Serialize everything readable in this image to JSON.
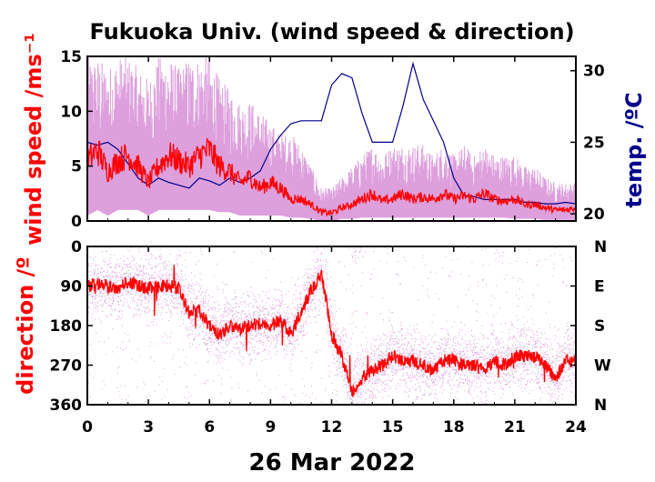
{
  "title": "Fukuoka Univ. (wind speed & direction)",
  "xlabel": "26 Mar 2022",
  "colors": {
    "speed": "#ff0000",
    "speed_range": "#dda0dd",
    "temp": "#00008b",
    "axis": "#000000"
  },
  "x_ticks": [
    "0",
    "3",
    "6",
    "9",
    "12",
    "15",
    "18",
    "21",
    "24"
  ],
  "chart_data": [
    {
      "type": "line",
      "name": "wind speed & temperature",
      "ylabel": "wind speed /ms⁻¹",
      "y2label": "temp. /ºC",
      "xlim": [
        0,
        24
      ],
      "ylim": [
        0,
        15
      ],
      "y2lim": [
        19.5,
        31
      ],
      "y_ticks": [
        "0",
        "5",
        "10",
        "15"
      ],
      "y2_ticks": [
        "20",
        "25",
        "30"
      ],
      "wind_speed": {
        "x": [
          0,
          0.5,
          1,
          1.5,
          2,
          2.5,
          3,
          3.5,
          4,
          4.5,
          5,
          5.5,
          6,
          6.5,
          7,
          7.5,
          8,
          8.5,
          9,
          9.5,
          10,
          10.5,
          11,
          11.5,
          12,
          12.5,
          13,
          13.5,
          14,
          14.5,
          15,
          15.5,
          16,
          16.5,
          17,
          17.5,
          18,
          18.5,
          19,
          19.5,
          20,
          20.5,
          21,
          21.5,
          22,
          22.5,
          23,
          23.5,
          24
        ],
        "y": [
          5.5,
          6.5,
          4.5,
          5.5,
          6.0,
          5.0,
          3.5,
          5.0,
          6.0,
          5.5,
          5.0,
          6.0,
          6.5,
          5.0,
          4.5,
          3.5,
          4.0,
          3.0,
          3.5,
          3.0,
          2.0,
          2.0,
          1.5,
          0.8,
          0.7,
          1.2,
          1.5,
          2.0,
          2.5,
          1.8,
          2.0,
          2.5,
          2.0,
          2.2,
          2.0,
          2.5,
          2.0,
          2.3,
          2.0,
          2.5,
          2.0,
          1.8,
          2.0,
          1.5,
          1.5,
          1.2,
          1.0,
          1.0,
          1.2
        ]
      },
      "wind_range": {
        "x": [
          0,
          0.5,
          1,
          1.5,
          2,
          2.5,
          3,
          3.5,
          4,
          4.5,
          5,
          5.5,
          6,
          6.5,
          7,
          7.5,
          8,
          8.5,
          9,
          9.5,
          10,
          10.5,
          11,
          11.5,
          12,
          12.5,
          13,
          13.5,
          14,
          14.5,
          15,
          15.5,
          16,
          16.5,
          17,
          17.5,
          18,
          18.5,
          19,
          19.5,
          20,
          20.5,
          21,
          21.5,
          22,
          22.5,
          23,
          23.5,
          24
        ],
        "low": [
          0.5,
          1.0,
          0.5,
          1.0,
          1.0,
          1.0,
          0.5,
          1.0,
          1.0,
          1.0,
          1.0,
          1.0,
          1.0,
          0.8,
          0.8,
          0.5,
          0.5,
          0.5,
          0.5,
          0.5,
          0.3,
          0.3,
          0.2,
          0.0,
          0.0,
          0.2,
          0.2,
          0.3,
          0.3,
          0.3,
          0.3,
          0.3,
          0.3,
          0.3,
          0.3,
          0.3,
          0.3,
          0.3,
          0.3,
          0.3,
          0.3,
          0.3,
          0.2,
          0.2,
          0.2,
          0.1,
          0.1,
          0.1,
          0.1
        ],
        "high": [
          15,
          15,
          14,
          15,
          15,
          14,
          13,
          15,
          15,
          14,
          15,
          15,
          15,
          13,
          12,
          11,
          11,
          10,
          9,
          8,
          8,
          7,
          5,
          3,
          3,
          4,
          5,
          6,
          7,
          6,
          7,
          7,
          7,
          7,
          6,
          7,
          6,
          7,
          6,
          7,
          6,
          6,
          6,
          5,
          5,
          4,
          3.5,
          3.5,
          3.5
        ]
      },
      "temperature": {
        "x": [
          0,
          0.5,
          1,
          1.5,
          2,
          2.5,
          3,
          3.5,
          4,
          4.5,
          5,
          5.5,
          6,
          6.5,
          7,
          7.5,
          8,
          8.5,
          9,
          9.5,
          10,
          10.5,
          11,
          11.5,
          12,
          12.5,
          13,
          13.5,
          14,
          14.5,
          15,
          15.5,
          16,
          16.5,
          17,
          17.5,
          18,
          18.5,
          19,
          19.5,
          20,
          20.5,
          21,
          21.5,
          22,
          22.5,
          23,
          23.5,
          24
        ],
        "y": [
          25.0,
          24.8,
          25.0,
          24.5,
          23.5,
          22.5,
          22.0,
          22.5,
          22.2,
          22.0,
          21.8,
          22.5,
          22.3,
          22.0,
          22.5,
          22.2,
          22.5,
          23.0,
          24.5,
          25.5,
          26.3,
          26.5,
          26.5,
          26.5,
          29.0,
          29.8,
          29.5,
          27.0,
          25.0,
          25.0,
          25.0,
          27.5,
          30.5,
          28.0,
          26.5,
          25.0,
          22.5,
          21.3,
          21.2,
          21.0,
          21.0,
          21.0,
          21.0,
          20.8,
          20.8,
          20.7,
          20.7,
          20.8,
          20.7
        ]
      }
    },
    {
      "type": "scatter",
      "name": "wind direction",
      "ylabel": "direction /º",
      "xlim": [
        0,
        24
      ],
      "ylim": [
        0,
        360
      ],
      "y_ticks": [
        "0",
        "90",
        "180",
        "270",
        "360"
      ],
      "y2_ticks": [
        "N",
        "E",
        "S",
        "W",
        "N"
      ],
      "direction": {
        "x": [
          0,
          0.5,
          1,
          1.5,
          2,
          2.5,
          3,
          3.5,
          4,
          4.5,
          5,
          5.5,
          6,
          6.5,
          7,
          7.5,
          8,
          8.5,
          9,
          9.5,
          10,
          10.5,
          11,
          11.5,
          12,
          12.5,
          13,
          13.5,
          14,
          14.5,
          15,
          15.5,
          16,
          16.5,
          17,
          17.5,
          18,
          18.5,
          19,
          19.5,
          20,
          20.5,
          21,
          21.5,
          22,
          22.5,
          23,
          23.5,
          24
        ],
        "y": [
          90,
          85,
          90,
          95,
          80,
          90,
          95,
          90,
          90,
          95,
          150,
          145,
          180,
          200,
          180,
          190,
          180,
          175,
          180,
          170,
          200,
          150,
          100,
          60,
          200,
          250,
          330,
          300,
          280,
          270,
          250,
          260,
          260,
          270,
          280,
          260,
          260,
          270,
          270,
          280,
          260,
          270,
          250,
          250,
          250,
          270,
          300,
          260,
          260
        ]
      }
    }
  ]
}
